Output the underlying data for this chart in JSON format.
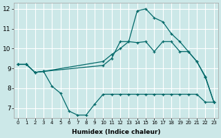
{
  "xlabel": "Humidex (Indice chaleur)",
  "background_color": "#cce8e8",
  "grid_color": "#ffffff",
  "line_color": "#006868",
  "xlim": [
    -0.5,
    23.5
  ],
  "ylim": [
    6.5,
    12.3
  ],
  "yticks": [
    7,
    8,
    9,
    10,
    11,
    12
  ],
  "xticks": [
    0,
    1,
    2,
    3,
    4,
    5,
    6,
    7,
    8,
    9,
    10,
    11,
    12,
    13,
    14,
    15,
    16,
    17,
    18,
    19,
    20,
    21,
    22,
    23
  ],
  "line1_x": [
    0,
    1,
    2,
    3,
    4,
    5,
    6,
    7,
    8,
    9,
    10,
    11,
    12,
    13,
    14,
    15,
    16,
    17,
    18,
    19,
    20,
    21,
    22,
    23
  ],
  "line1_y": [
    9.2,
    9.2,
    8.8,
    8.85,
    8.1,
    7.75,
    6.85,
    6.65,
    6.65,
    7.2,
    7.7,
    7.7,
    7.7,
    7.7,
    7.7,
    7.7,
    7.7,
    7.7,
    7.7,
    7.7,
    7.7,
    7.7,
    7.3,
    7.3
  ],
  "line2_x": [
    0,
    1,
    2,
    3,
    10,
    11,
    12,
    13,
    14,
    15,
    16,
    17,
    18,
    19,
    20,
    21,
    22,
    23
  ],
  "line2_y": [
    9.2,
    9.2,
    8.8,
    8.85,
    9.15,
    9.5,
    10.35,
    10.35,
    11.9,
    12.0,
    11.55,
    11.35,
    10.75,
    10.35,
    9.85,
    9.35,
    8.55,
    7.3
  ],
  "line3_x": [
    0,
    1,
    2,
    3,
    10,
    11,
    12,
    13,
    14,
    15,
    16,
    17,
    18,
    19,
    20,
    21,
    22,
    23
  ],
  "line3_y": [
    9.2,
    9.2,
    8.8,
    8.85,
    9.35,
    9.7,
    10.0,
    10.35,
    10.3,
    10.35,
    9.85,
    10.35,
    10.35,
    9.85,
    9.85,
    9.35,
    8.6,
    7.3
  ]
}
